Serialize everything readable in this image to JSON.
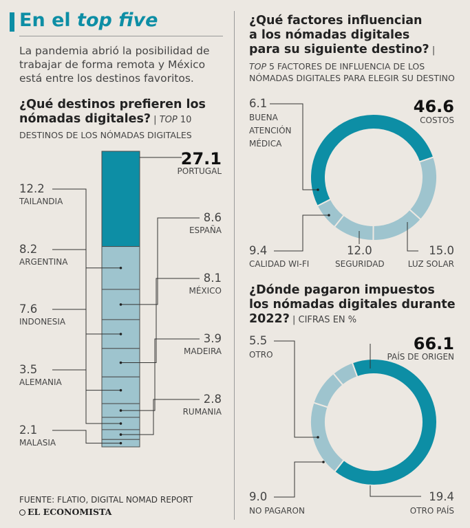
{
  "header": {
    "title_prefix": "En el ",
    "title_em": "top five",
    "intro": "La pandemia abrió la posibilidad de trabajar de forma remota y México está entre los destinos favoritos."
  },
  "destinos": {
    "heading_line1": "¿Qué destinos prefieren los",
    "heading_line2": "nómadas digitales?",
    "heading_sep": " | ",
    "heading_sub_em": "TOP",
    "heading_sub": " 10",
    "subtitle": "DESTINOS DE LOS NÓMADAS DIGITALES"
  },
  "factores": {
    "heading_line1": "¿Qué factores influencian",
    "heading_line2": "a los nómadas digitales",
    "heading_line3": "para su siguiente destino?",
    "heading_sep": " |",
    "subtitle_em": "TOP",
    "subtitle_line1": " 5 FACTORES DE INFLUENCIA DE LOS",
    "subtitle_line2": "NÓMADAS DIGITALES PARA ELEGIR SU DESTINO"
  },
  "impuestos": {
    "heading_line1": "¿Dónde pagaron impuestos",
    "heading_line2": "los nómadas digitales durante",
    "heading_line3": "2022?",
    "heading_sep": " | ",
    "heading_sub": "CIFRAS EN %"
  },
  "footer": {
    "source": "FUENTE: FLATIO, DIGITAL NOMAD REPORT",
    "brand": "EL ECONOMISTA"
  },
  "colors": {
    "accent": "#0d8ea5",
    "light": "#9ec4ce",
    "background": "#ece8e2"
  },
  "chart_data": [
    {
      "type": "bar",
      "stacked": true,
      "unit": "%",
      "categories": [
        "PORTUGAL",
        "TAILANDIA",
        "ESPAÑA",
        "ARGENTINA",
        "MÉXICO",
        "INDONESIA",
        "MADEIRA",
        "ALEMANIA",
        "RUMANIA",
        "MALASIA"
      ],
      "values": [
        27.1,
        12.2,
        8.6,
        8.2,
        8.1,
        7.6,
        3.9,
        3.5,
        2.8,
        2.1
      ],
      "labels": [
        "27.1",
        "12.2",
        "8.6",
        "8.2",
        "8.1",
        "7.6",
        "3.9",
        "3.5",
        "2.8",
        "2.1"
      ],
      "highlight": "PORTUGAL"
    },
    {
      "type": "pie",
      "donut": true,
      "categories": [
        "COSTOS",
        "LUZ SOLAR",
        "SEGURIDAD",
        "CALIDAD WI-FI",
        "BUENA ATENCIÓN MÉDICA"
      ],
      "values": [
        46.6,
        15.0,
        12.0,
        9.4,
        6.1
      ],
      "labels": [
        "46.6",
        "15.0",
        "12.0",
        "9.4",
        "6.1"
      ],
      "label_lines": [
        [
          "COSTOS"
        ],
        [
          "LUZ SOLAR"
        ],
        [
          "SEGURIDAD"
        ],
        [
          "CALIDAD WI-FI"
        ],
        [
          "BUENA",
          "ATENCIÓN",
          "MÉDICA"
        ]
      ],
      "highlight": "COSTOS"
    },
    {
      "type": "pie",
      "donut": true,
      "unit": "%",
      "categories": [
        "PAÍS DE ORIGEN",
        "OTRO PAÍS",
        "NO PAGARON",
        "OTRO"
      ],
      "values": [
        66.1,
        19.4,
        9.0,
        5.5
      ],
      "labels": [
        "66.1",
        "19.4",
        "9.0",
        "5.5"
      ],
      "label_lines": [
        [
          "PAÍS DE ORIGEN"
        ],
        [
          "OTRO PAÍS"
        ],
        [
          "NO PAGARON"
        ],
        [
          "OTRO"
        ]
      ],
      "highlight": "PAÍS DE ORIGEN"
    }
  ]
}
